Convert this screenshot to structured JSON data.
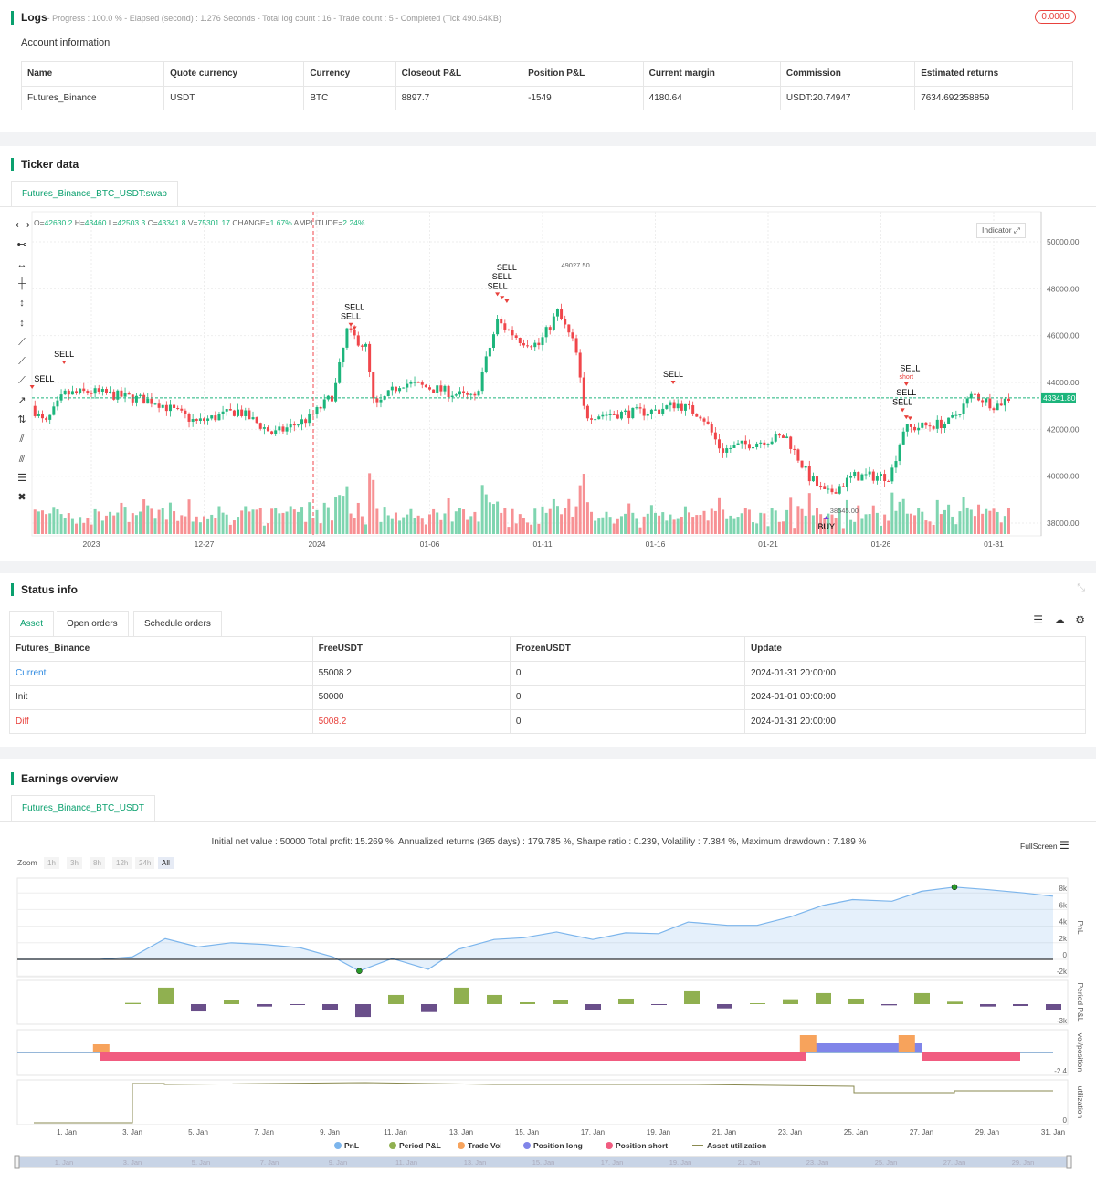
{
  "logs": {
    "title": "Logs",
    "summary": "- Progress : 100.0 % - Elapsed (second) : 1.276  Seconds - Total log count : 16 - Trade count : 5 - Completed (Tick 490.64KB)",
    "badge": "0.0000",
    "badge_color": "#e8413c"
  },
  "account": {
    "title": "Account information",
    "headers": [
      "Name",
      "Quote currency",
      "Currency",
      "Closeout P&L",
      "Position P&L",
      "Current margin",
      "Commission",
      "Estimated returns"
    ],
    "row": [
      "Futures_Binance",
      "USDT",
      "BTC",
      "8897.7",
      "-1549",
      "4180.64",
      "USDT:20.74947",
      "7634.692358859"
    ]
  },
  "ticker": {
    "title": "Ticker data",
    "tab": "Futures_Binance_BTC_USDT:swap",
    "ohlc": {
      "o_label": "O=",
      "o": "42630.2",
      "h_label": "H=",
      "h": "43460",
      "l_label": "L=",
      "l": "42503.3",
      "c_label": "C=",
      "c": "43341.8",
      "v_label": "V=",
      "v": "75301.17",
      "change_label": "CHANGE=",
      "change": "1.67%",
      "amp_label": "AMPLITUDE=",
      "amp": "2.24%"
    },
    "indicator_button": "Indicator",
    "current_price": "43341.80",
    "colors": {
      "up": "#1db57c",
      "down": "#f0464b",
      "accent": "#0aa06e"
    },
    "tools": [
      "horizontal-line-icon",
      "horizontal-ray-icon",
      "horizontal-segment-icon",
      "vertical-line-icon",
      "vertical-segment-icon",
      "vertical-ray-icon",
      "trend-line-icon",
      "ray-icon",
      "segment-icon",
      "arrow-icon",
      "price-range-icon",
      "parallel-channel-icon",
      "fib-icon",
      "grid-icon",
      "trash-icon"
    ]
  },
  "chart_data": [
    {
      "type": "candlestick",
      "interval": "4h",
      "y_ticks": [
        "50000.00",
        "48000.00",
        "46000.00",
        "44000.00",
        "42000.00",
        "40000.00",
        "38000.00"
      ],
      "ylim": [
        38000,
        50000
      ],
      "x_ticks": [
        {
          "label": "2023",
          "date": "2023-12-22"
        },
        {
          "label": "12-27",
          "date": "2023-12-27"
        },
        {
          "label": "2024",
          "date": "2024-01-01"
        },
        {
          "label": "01-06",
          "date": "2024-01-06"
        },
        {
          "label": "01-11",
          "date": "2024-01-11"
        },
        {
          "label": "01-16",
          "date": "2024-01-16"
        },
        {
          "label": "01-21",
          "date": "2024-01-21"
        },
        {
          "label": "01-26",
          "date": "2024-01-26"
        },
        {
          "label": "01-31",
          "date": "2024-01-31"
        }
      ],
      "price_path": [
        [
          "2023-12-19T08:00",
          43000
        ],
        [
          "2023-12-19T23:00",
          42200
        ],
        [
          "2023-12-20T19:00",
          43500
        ],
        [
          "2023-12-22T00:00",
          43600
        ],
        [
          "2023-12-24T20:00",
          43200
        ],
        [
          "2023-12-26T16:00",
          42300
        ],
        [
          "2023-12-28T12:00",
          42800
        ],
        [
          "2023-12-30T02:00",
          41800
        ],
        [
          "2023-12-31T17:00",
          42500
        ],
        [
          "2024-01-01T18:00",
          43500
        ],
        [
          "2024-01-02T08:00",
          46200
        ],
        [
          "2024-01-03T04:00",
          45500
        ],
        [
          "2024-01-03T13:00",
          42900
        ],
        [
          "2024-01-04T18:00",
          44000
        ],
        [
          "2024-01-06T09:00",
          43700
        ],
        [
          "2024-01-08T00:00",
          43300
        ],
        [
          "2024-01-09T00:00",
          46600
        ],
        [
          "2024-01-10T01:00",
          45800
        ],
        [
          "2024-01-10T20:00",
          45600
        ],
        [
          "2024-01-11T16:00",
          47000
        ],
        [
          "2024-01-12T11:00",
          45500
        ],
        [
          "2024-01-12T21:00",
          42600
        ],
        [
          "2024-01-14T21:00",
          42700
        ],
        [
          "2024-01-16T02:00",
          42800
        ],
        [
          "2024-01-16T22:00",
          43100
        ],
        [
          "2024-01-18T02:00",
          42600
        ],
        [
          "2024-01-18T22:00",
          41100
        ],
        [
          "2024-01-19T17:00",
          41300
        ],
        [
          "2024-01-21T19:00",
          41700
        ],
        [
          "2024-01-22T19:00",
          40000
        ],
        [
          "2024-01-23T14:00",
          39200
        ],
        [
          "2024-01-24T19:00",
          40000
        ],
        [
          "2024-01-26T10:00",
          40000
        ],
        [
          "2024-01-27T00:00",
          42000
        ],
        [
          "2024-01-29T01:00",
          42300
        ],
        [
          "2024-01-30T02:00",
          43500
        ],
        [
          "2024-01-31T02:00",
          43000
        ],
        [
          "2024-01-31T16:00",
          43341.8
        ]
      ],
      "high_marker": {
        "label": "49027.50",
        "date": "2024-01-11T16:00",
        "price": 49027.5
      },
      "low_marker": {
        "label": "38545.00",
        "date": "2024-01-23T14:00",
        "price": 38545
      },
      "signals": [
        {
          "text": "SELL",
          "date": "2023-12-19T09:00",
          "price": 44040
        },
        {
          "text": "SELL",
          "date": "2023-12-20T19:00",
          "price": 45090
        },
        {
          "text": "SELL",
          "date": "2024-01-02T12:00",
          "price": 46700
        },
        {
          "text": "SELL",
          "date": "2024-01-02T16:00",
          "price": 46550
        },
        {
          "text": "SELL",
          "date": "2024-01-09T00:00",
          "price": 48000
        },
        {
          "text": "SELL",
          "date": "2024-01-09T05:00",
          "price": 47850
        },
        {
          "text": "SELL",
          "date": "2024-01-09T10:00",
          "price": 47700
        },
        {
          "text": "SELL",
          "date": "2024-01-16T19:00",
          "price": 44235
        },
        {
          "text": "short",
          "date": "2024-01-27T03:00",
          "price": 44160
        },
        {
          "text": "SELL",
          "date": "2024-01-26T23:00",
          "price": 43050
        },
        {
          "text": "SELL",
          "date": "2024-01-27T03:00",
          "price": 42750
        },
        {
          "text": "SELL",
          "date": "2024-01-27T07:00",
          "price": 42700
        },
        {
          "text": "BUY",
          "date": "2024-01-23T14:00",
          "price": 37730
        }
      ]
    },
    {
      "type": "line",
      "title": "Initial net value : 50000 Total profit: 15.269 %, Annualized returns (365 days) : 179.785 %, Sharpe ratio : 0.239, Volatility : 7.384 %, Maximum drawdown : 7.189 %",
      "x_unit": "day of Jan 2024",
      "x_ticks": [
        "1. Jan",
        "3. Jan",
        "5. Jan",
        "7. Jan",
        "9. Jan",
        "11. Jan",
        "13. Jan",
        "15. Jan",
        "17. Jan",
        "19. Jan",
        "21. Jan",
        "23. Jan",
        "25. Jan",
        "27. Jan",
        "29. Jan",
        "31. Jan"
      ],
      "navigator_ticks": [
        "1. Jan",
        "3. Jan",
        "5. Jan",
        "7. Jan",
        "9. Jan",
        "11. Jan",
        "13. Jan",
        "15. Jan",
        "17. Jan",
        "19. Jan",
        "21. Jan",
        "23. Jan",
        "25. Jan",
        "27. Jan",
        "29. Jan"
      ],
      "panels": [
        {
          "label": "PnL",
          "ticks": [
            "8k",
            "6k",
            "4k",
            "2k",
            "0",
            "-2k"
          ]
        },
        {
          "label": "Period P&L",
          "ticks": [
            "-3k"
          ]
        },
        {
          "label": "vol/position",
          "ticks": [
            "-2.4"
          ]
        },
        {
          "label": "utilization",
          "ticks": [
            "0"
          ]
        }
      ],
      "series": [
        {
          "name": "PnL",
          "color": "#7cb5ec",
          "x": [
            -0.5,
            2,
            3,
            4,
            5,
            6,
            7,
            8.1,
            9.1,
            9.9,
            10.9,
            12,
            12.9,
            14,
            14.9,
            15.9,
            17,
            18,
            19,
            19.9,
            21.1,
            22,
            23,
            24,
            24.9,
            26.1,
            27,
            28,
            29,
            30.1,
            31
          ],
          "y": [
            0,
            0,
            0.3,
            2.5,
            1.5,
            2.0,
            1.8,
            1.4,
            0.3,
            -1.4,
            0.1,
            -1.2,
            1.2,
            2.4,
            2.6,
            3.3,
            2.4,
            3.2,
            3.1,
            4.5,
            4.1,
            4.1,
            5.1,
            6.5,
            7.2,
            7.0,
            8.2,
            8.7,
            8.4,
            8.0,
            7.6
          ],
          "unit": "k"
        },
        {
          "name": "Period P&L",
          "color_pos": "#90b050",
          "color_neg": "#6a4f8a",
          "x": [
            3,
            4,
            5,
            6,
            7,
            8,
            9,
            10,
            11,
            12,
            13,
            14,
            15,
            16,
            17,
            18,
            19,
            20,
            21,
            22,
            23,
            24,
            25,
            26,
            27,
            28,
            29,
            30,
            31
          ],
          "y": [
            0.2,
            2.7,
            -1.2,
            0.6,
            -0.4,
            -0.1,
            -1.0,
            -2.1,
            1.5,
            -1.3,
            2.7,
            1.5,
            0.3,
            0.6,
            -1.0,
            0.9,
            -0.1,
            2.1,
            -0.7,
            0,
            0.8,
            1.8,
            0.9,
            -0.2,
            1.8,
            0.4,
            -0.4,
            -0.3,
            -0.9
          ],
          "unit": "k"
        },
        {
          "name": "Trade Vol",
          "color": "#f7a35c"
        },
        {
          "name": "Position long",
          "color": "#8085e9",
          "range": [
            23.5,
            27
          ]
        },
        {
          "name": "Position short",
          "color": "#f15c80",
          "ranges": [
            [
              2,
              23.5
            ],
            [
              27,
              30
            ]
          ]
        },
        {
          "name": "Asset utilization",
          "color": "#8a8a50"
        }
      ]
    }
  ],
  "status": {
    "title": "Status info",
    "tabs": [
      "Asset",
      "Open orders",
      "Schedule orders"
    ],
    "headers": [
      "Futures_Binance",
      "FreeUSDT",
      "FrozenUSDT",
      "Update"
    ],
    "rows": [
      [
        "Current",
        "55008.2",
        "0",
        "2024-01-31 20:00:00"
      ],
      [
        "Init",
        "50000",
        "0",
        "2024-01-01 00:00:00"
      ],
      [
        "Diff",
        "5008.2",
        "0",
        "2024-01-31 20:00:00"
      ]
    ]
  },
  "earnings": {
    "title": "Earnings overview",
    "tab": "Futures_Binance_BTC_USDT",
    "fullscreen": "FullScreen",
    "zoom_label": "Zoom",
    "zoom_buttons": [
      "1h",
      "3h",
      "8h",
      "12h",
      "24h",
      "All"
    ]
  }
}
